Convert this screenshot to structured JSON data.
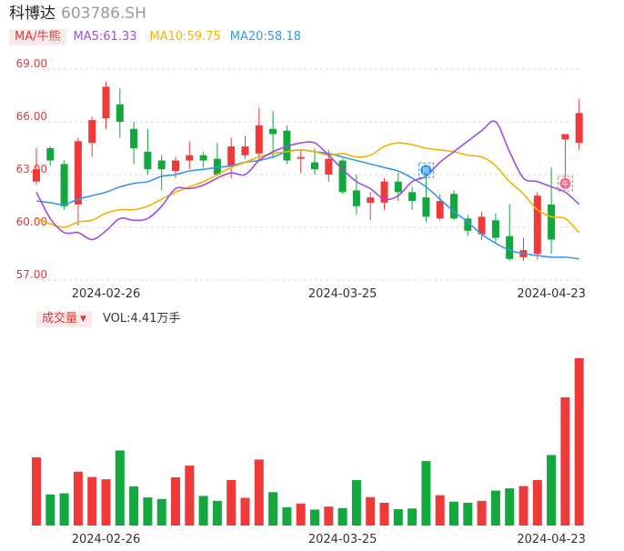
{
  "header": {
    "name": "科博达",
    "code": "603786.SH"
  },
  "indicators": {
    "badge": "MA/牛熊",
    "ma5": "MA5:61.33",
    "ma10": "MA10:59.75",
    "ma20": "MA20:58.18"
  },
  "volume_panel": {
    "badge": "成交量",
    "vol": "VOL:4.41万手"
  },
  "colors": {
    "up": "#f03a3a",
    "down": "#12a83d",
    "ma5": "#a04de0",
    "ma10": "#f2b300",
    "ma20": "#3b97e6"
  },
  "markers": [
    {
      "index": 28,
      "icon": "bear-marker-icon",
      "label": "熊"
    },
    {
      "index": 38,
      "icon": "bull-marker-icon",
      "label": "牛"
    }
  ],
  "chart_data": {
    "type": "candlestick",
    "y_ticks": [
      "69.00",
      "66.00",
      "63.00",
      "60.00",
      "57.00"
    ],
    "ylim": [
      57,
      69
    ],
    "x_ticks": [
      {
        "index": 5,
        "label": "2024-02-26"
      },
      {
        "index": 22,
        "label": "2024-03-25"
      },
      {
        "index": 37,
        "label": "2024-04-23"
      }
    ],
    "candles": [
      {
        "o": 62.6,
        "c": 63.3,
        "h": 64.5,
        "l": 62.4
      },
      {
        "o": 64.5,
        "c": 63.8,
        "h": 64.6,
        "l": 63.5
      },
      {
        "o": 63.6,
        "c": 61.2,
        "h": 63.8,
        "l": 61.0
      },
      {
        "o": 61.3,
        "c": 64.9,
        "h": 65.1,
        "l": 60.1
      },
      {
        "o": 64.8,
        "c": 66.1,
        "h": 66.3,
        "l": 64.0
      },
      {
        "o": 66.2,
        "c": 68.0,
        "h": 68.3,
        "l": 65.6
      },
      {
        "o": 67.0,
        "c": 66.0,
        "h": 67.9,
        "l": 65.1
      },
      {
        "o": 65.6,
        "c": 64.5,
        "h": 66.0,
        "l": 63.6
      },
      {
        "o": 64.3,
        "c": 63.3,
        "h": 65.6,
        "l": 63.0
      },
      {
        "o": 63.8,
        "c": 63.3,
        "h": 64.1,
        "l": 62.1
      },
      {
        "o": 63.2,
        "c": 63.8,
        "h": 64.0,
        "l": 62.8
      },
      {
        "o": 63.8,
        "c": 64.1,
        "h": 64.9,
        "l": 63.3
      },
      {
        "o": 64.1,
        "c": 63.8,
        "h": 64.3,
        "l": 63.4
      },
      {
        "o": 63.9,
        "c": 63.0,
        "h": 64.8,
        "l": 62.9
      },
      {
        "o": 63.5,
        "c": 64.6,
        "h": 65.1,
        "l": 62.8
      },
      {
        "o": 64.1,
        "c": 64.6,
        "h": 65.2,
        "l": 63.9
      },
      {
        "o": 64.2,
        "c": 65.8,
        "h": 66.8,
        "l": 63.8
      },
      {
        "o": 65.6,
        "c": 65.3,
        "h": 66.6,
        "l": 63.9
      },
      {
        "o": 65.5,
        "c": 63.8,
        "h": 65.8,
        "l": 63.6
      },
      {
        "o": 63.9,
        "c": 64.0,
        "h": 64.4,
        "l": 63.1
      },
      {
        "o": 63.7,
        "c": 63.3,
        "h": 64.5,
        "l": 63.0
      },
      {
        "o": 63.0,
        "c": 63.9,
        "h": 64.4,
        "l": 62.6
      },
      {
        "o": 63.8,
        "c": 62.0,
        "h": 63.9,
        "l": 61.9
      },
      {
        "o": 62.1,
        "c": 61.2,
        "h": 63.0,
        "l": 60.7
      },
      {
        "o": 61.4,
        "c": 61.7,
        "h": 62.0,
        "l": 60.4
      },
      {
        "o": 61.4,
        "c": 62.6,
        "h": 62.8,
        "l": 61.0
      },
      {
        "o": 62.6,
        "c": 62.0,
        "h": 63.1,
        "l": 61.5
      },
      {
        "o": 62.0,
        "c": 61.5,
        "h": 62.3,
        "l": 61.0
      },
      {
        "o": 61.7,
        "c": 60.6,
        "h": 63.4,
        "l": 60.3
      },
      {
        "o": 60.5,
        "c": 61.5,
        "h": 61.9,
        "l": 60.4
      },
      {
        "o": 61.9,
        "c": 60.5,
        "h": 62.1,
        "l": 60.4
      },
      {
        "o": 60.5,
        "c": 59.8,
        "h": 60.7,
        "l": 59.5
      },
      {
        "o": 59.6,
        "c": 60.6,
        "h": 60.9,
        "l": 59.3
      },
      {
        "o": 60.4,
        "c": 59.4,
        "h": 60.8,
        "l": 59.1
      },
      {
        "o": 59.5,
        "c": 58.2,
        "h": 61.3,
        "l": 58.1
      },
      {
        "o": 58.3,
        "c": 58.7,
        "h": 59.4,
        "l": 58.1
      },
      {
        "o": 58.5,
        "c": 61.8,
        "h": 62.0,
        "l": 58.2
      },
      {
        "o": 61.3,
        "c": 59.3,
        "h": 63.4,
        "l": 58.5
      },
      {
        "o": 65.0,
        "c": 65.3,
        "h": 65.3,
        "l": 62.8
      },
      {
        "o": 64.8,
        "c": 66.5,
        "h": 67.3,
        "l": 64.4
      }
    ],
    "ma5": [
      62.0,
      60.5,
      59.7,
      59.7,
      59.3,
      59.8,
      60.5,
      60.4,
      60.5,
      61.2,
      62.2,
      62.2,
      62.4,
      62.8,
      63.1,
      63.0,
      63.8,
      64.3,
      64.6,
      64.8,
      64.8,
      64.1,
      63.3,
      62.6,
      62.2,
      61.6,
      61.8,
      62.6,
      62.9,
      63.7,
      64.3,
      64.9,
      65.5,
      66.0,
      64.3,
      62.8,
      62.6,
      62.3,
      62.0,
      61.3
    ],
    "ma10": [
      60.5,
      60.2,
      60.0,
      60.3,
      60.4,
      60.8,
      61.0,
      61.0,
      61.2,
      61.6,
      62.0,
      62.3,
      62.6,
      63.0,
      63.4,
      63.7,
      64.0,
      64.2,
      64.3,
      64.4,
      64.3,
      64.1,
      64.2,
      64.0,
      64.1,
      64.6,
      64.8,
      64.7,
      64.5,
      64.4,
      64.3,
      64.1,
      64.0,
      63.5,
      62.6,
      61.9,
      61.0,
      60.6,
      60.5,
      59.7
    ],
    "ma20": [
      61.5,
      61.4,
      61.3,
      61.6,
      61.8,
      62.0,
      62.3,
      62.5,
      62.6,
      62.9,
      63.0,
      63.2,
      63.3,
      63.4,
      63.5,
      63.7,
      63.8,
      64.0,
      64.3,
      64.4,
      64.3,
      64.2,
      64.0,
      63.8,
      63.6,
      63.4,
      63.2,
      62.8,
      62.3,
      61.6,
      60.9,
      60.3,
      59.6,
      59.1,
      58.7,
      58.5,
      58.4,
      58.3,
      58.3,
      58.2
    ],
    "volume": {
      "ylim": [
        0,
        4.41
      ],
      "values": [
        1.8,
        0.82,
        0.85,
        1.42,
        1.28,
        1.22,
        1.98,
        1.03,
        0.74,
        0.7,
        1.27,
        1.58,
        0.78,
        0.65,
        1.2,
        0.73,
        1.74,
        0.88,
        0.48,
        0.58,
        0.42,
        0.5,
        0.46,
        1.2,
        0.75,
        0.6,
        0.43,
        0.45,
        1.7,
        0.8,
        0.63,
        0.6,
        0.65,
        0.92,
        0.98,
        1.04,
        1.2,
        1.86,
        3.38,
        4.41
      ]
    }
  }
}
